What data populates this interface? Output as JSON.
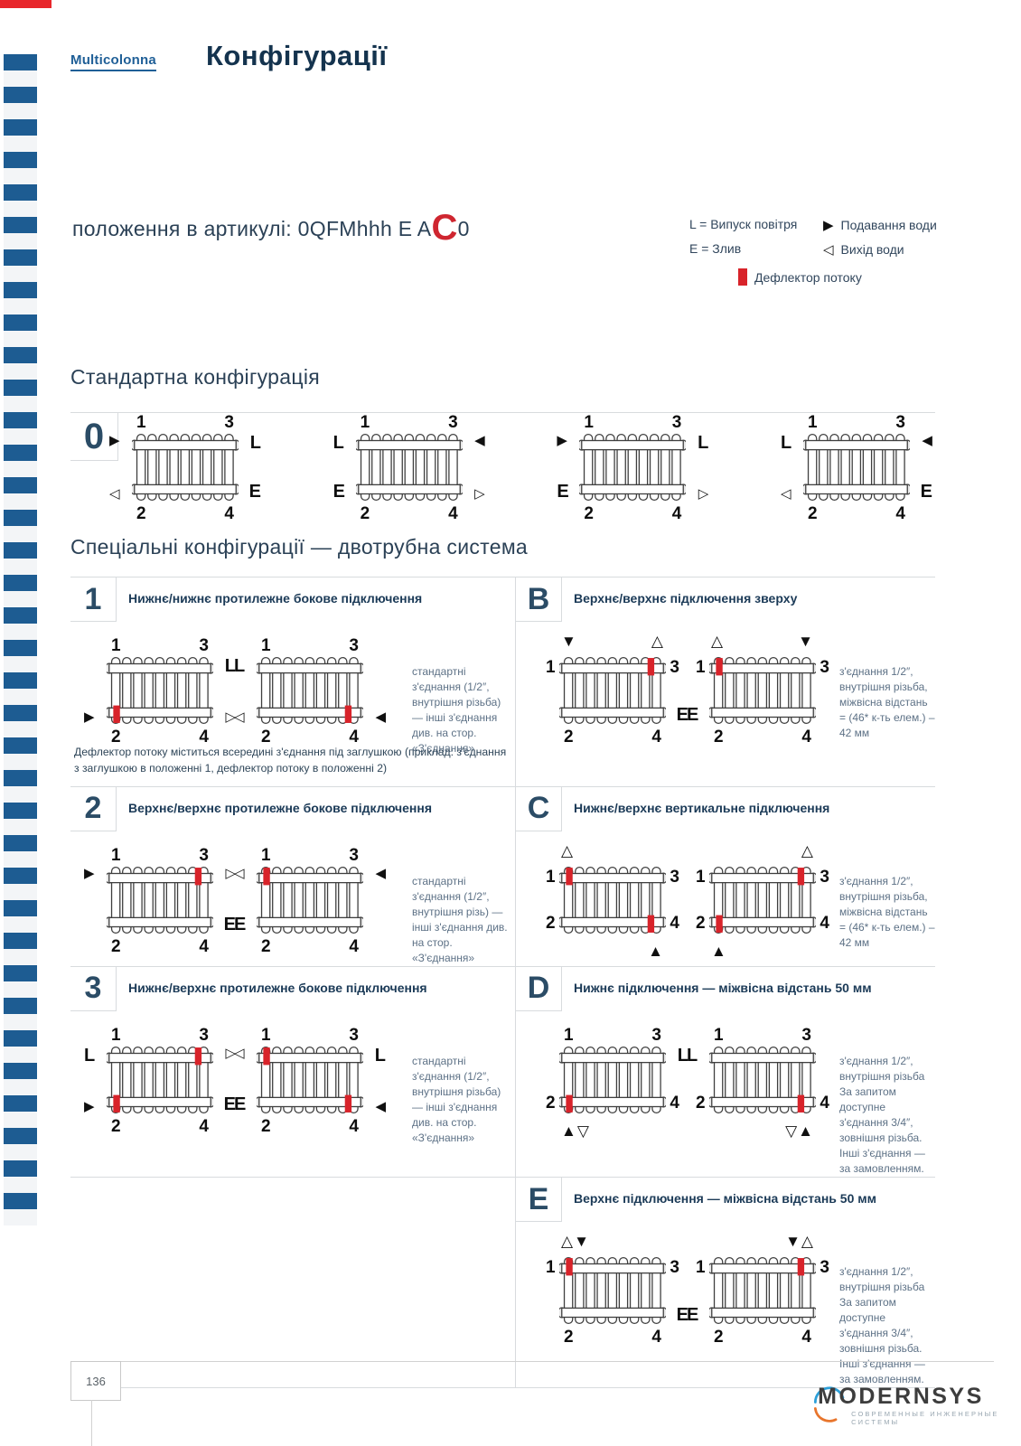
{
  "page": {
    "brand": "Multicolonna",
    "title": "Конфігурації",
    "page_number": "136"
  },
  "article": {
    "prefix": "положення в артикулі: 0QFMhhh E A",
    "highlight": "C",
    "suffix": "0"
  },
  "legend": {
    "air": "L = Випуск повітря",
    "drain": "E = Злив",
    "supply": {
      "icon": "▶",
      "label": "Подавання води"
    },
    "outlet": {
      "icon": "◁",
      "label": "Вихід води"
    },
    "deflector": {
      "label": "Дефлектор потоку"
    }
  },
  "colors": {
    "accent_red": "#d8232a",
    "stripe_blue": "#1d5c92",
    "navy": "#1b3a57",
    "note_gray": "#5d7186"
  },
  "positions": {
    "tl": "1",
    "tr": "3",
    "bl": "2",
    "br": "4"
  },
  "standard": {
    "heading": "Стандартна конфігурація",
    "badge": "0",
    "radiators": [
      {
        "nt": "above",
        "nb": "below",
        "tl": "▶",
        "tr": "L",
        "bl": "◁",
        "br": "E",
        "defl": []
      },
      {
        "nt": "above",
        "nb": "below",
        "tl": "L",
        "tr": "◀",
        "bl": "E",
        "br": "▷",
        "defl": []
      },
      {
        "nt": "above",
        "nb": "below",
        "tl": "▶",
        "tr": "L",
        "bl": "E",
        "br": "▷",
        "defl": []
      },
      {
        "nt": "above",
        "nb": "below",
        "tl": "L",
        "tr": "◀",
        "bl": "◁",
        "br": "E",
        "defl": []
      }
    ]
  },
  "special": {
    "heading": "Спеціальні конфігурації — двотрубна система",
    "rows": [
      {
        "badge": "1",
        "column": "left",
        "title": "Нижнє/нижнє протилежне бокове підключення",
        "radiators": [
          {
            "nt": "above",
            "nb": "below",
            "tr": "L",
            "bl": "▶",
            "br": "▷",
            "defl": [
              "bl"
            ]
          },
          {
            "nt": "above",
            "nb": "below",
            "tl": "L",
            "bl": "◁",
            "br": "◀",
            "defl": [
              "br"
            ]
          }
        ],
        "note": "стандартні з'єднання (1/2″, внутрішня різьба) — інші з'єднання див. на стор. «З'єднання»",
        "footnote": "Дефлектор потоку міститься всередині з'єднання під заглушкою (приклад: з'єднання з заглушкою в положенні 1, дефлектор потоку в положенні 2)"
      },
      {
        "badge": "B",
        "column": "right",
        "title": "Верхнє/верхнє підключення зверху",
        "radiators": [
          {
            "nt": "side",
            "nb": "below",
            "above_l": "▼",
            "above_r": "△",
            "br": "E",
            "defl": [
              "tr"
            ]
          },
          {
            "nt": "side",
            "nb": "below",
            "above_l": "△",
            "above_r": "▼",
            "bl": "E",
            "defl": [
              "tl"
            ]
          }
        ],
        "note": "з'єднання 1/2″, внутрішня різьба, міжвісна відстань = (46* к-ть елем.) – 42 мм"
      },
      {
        "badge": "2",
        "column": "left",
        "title": "Верхнє/верхнє протилежне бокове підключення",
        "radiators": [
          {
            "nt": "above",
            "nb": "below",
            "tl": "▶",
            "tr": "▷",
            "br": "E",
            "defl": [
              "tr"
            ]
          },
          {
            "nt": "above",
            "nb": "below",
            "tl": "◁",
            "tr": "◀",
            "bl": "E",
            "defl": [
              "tl"
            ]
          }
        ],
        "note": "стандартні з'єднання (1/2″, внутрішня різь) — інші з'єднання див. на стор. «З'єднання»"
      },
      {
        "badge": "C",
        "column": "right",
        "title": "Нижнє/верхнє вертикальне підключення",
        "radiators": [
          {
            "nt": "side",
            "nb": "side",
            "above_l": "△",
            "below_r": "▲",
            "defl": [
              "tl",
              "br"
            ]
          },
          {
            "nt": "side",
            "nb": "side",
            "above_r": "△",
            "below_l": "▲",
            "defl": [
              "tr",
              "bl"
            ]
          }
        ],
        "note": "з'єднання 1/2″, внутрішня різьба, міжвісна відстань = (46* к-ть елем.) – 42 мм"
      },
      {
        "badge": "3",
        "column": "left",
        "title": "Нижнє/верхнє протилежне бокове підключення",
        "radiators": [
          {
            "nt": "above",
            "nb": "below",
            "tl": "L",
            "tr": "▷",
            "bl": "▶",
            "br": "E",
            "defl": [
              "tr",
              "bl"
            ]
          },
          {
            "nt": "above",
            "nb": "below",
            "tl": "◁",
            "tr": "L",
            "bl": "E",
            "br": "◀",
            "defl": [
              "tl",
              "br"
            ]
          }
        ],
        "note": "стандартні з'єднання (1/2″, внутрішня різьба) — інші з'єднання див. на стор. «З'єднання»"
      },
      {
        "badge": "D",
        "column": "right",
        "title": "Нижнє підключення — міжвісна відстань 50 мм",
        "radiators": [
          {
            "nt": "above",
            "nb": "side",
            "tr": "L",
            "below_l": "▲▽",
            "defl": [
              "bl"
            ]
          },
          {
            "nt": "above",
            "nb": "side",
            "tl": "L",
            "below_r": "▽▲",
            "defl": [
              "br"
            ]
          }
        ],
        "note": "з'єднання 1/2″, внутрішня різьба За запитом доступне з'єднання 3/4″, зовнішня різьба. Інші з'єднання — за замовленням."
      },
      {
        "badge": "E",
        "column": "right",
        "title": "Верхнє підключення — міжвісна відстань 50 мм",
        "radiators": [
          {
            "nt": "side",
            "nb": "below",
            "above_l": "△▼",
            "br": "E",
            "defl": [
              "tl"
            ]
          },
          {
            "nt": "side",
            "nb": "below",
            "above_r": "▼△",
            "bl": "E",
            "defl": [
              "tr"
            ]
          }
        ],
        "note": "з'єднання 1/2″, внутрішня різьба За запитом доступне з'єднання 3/4″, зовнішня різьба. Інші з'єднання — за замовленням."
      }
    ]
  },
  "footer": {
    "logo": "MODERNSYS",
    "tagline": "СОВРЕМЕННЫЕ ИНЖЕНЕРНЫЕ СИСТЕМЫ"
  }
}
